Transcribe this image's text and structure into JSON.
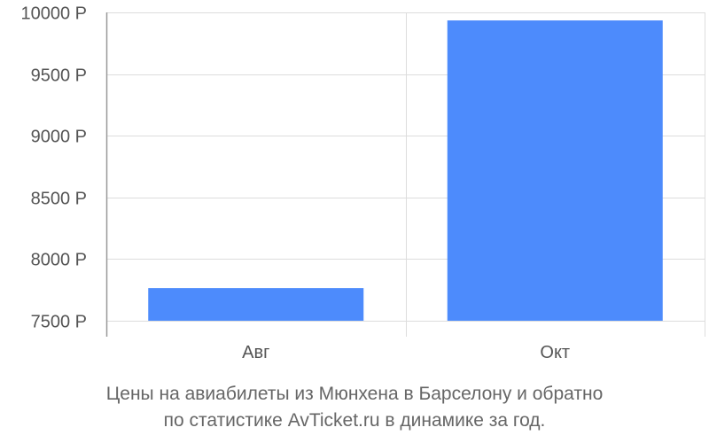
{
  "chart_data": {
    "type": "bar",
    "categories": [
      "Авг",
      "Окт"
    ],
    "values": [
      7765,
      9935
    ],
    "ylim": [
      7500,
      10000
    ],
    "yticks": [
      7500,
      8000,
      8500,
      9000,
      9500,
      10000
    ],
    "ytick_labels": [
      "7500 Р",
      "8000 Р",
      "8500 Р",
      "9000 Р",
      "9500 Р",
      "10000 Р"
    ],
    "grid": true,
    "bar_color": "#4d8bfc",
    "grid_color": "#dddddd",
    "axis_color": "#999999"
  },
  "caption": {
    "line1": "Цены на авиабилеты из Мюнхена в Барселону и обратно",
    "line2": "по статистике AvTicket.ru в динамике за год."
  }
}
